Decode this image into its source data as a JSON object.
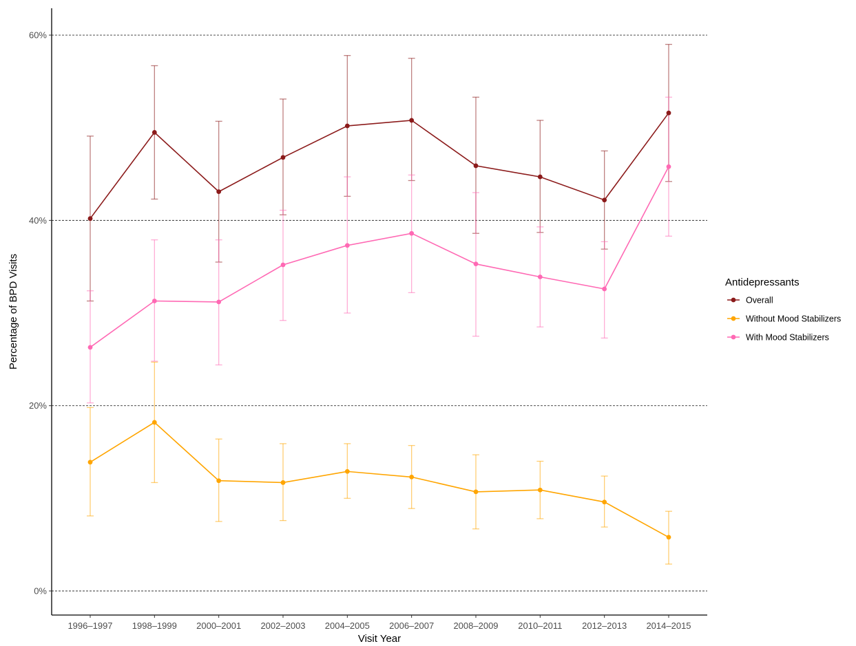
{
  "chart_data": {
    "type": "line",
    "title": "",
    "xlabel": "Visit Year",
    "ylabel": "Percentage of BPD Visits",
    "categories": [
      "1996–1997",
      "1998–1999",
      "2000–2001",
      "2002–2003",
      "2004–2005",
      "2006–2007",
      "2008–2009",
      "2010–2011",
      "2012–2013",
      "2014–2015"
    ],
    "y_ticks": [
      0,
      20,
      40,
      60
    ],
    "y_tick_labels": [
      "0%",
      "20%",
      "40%",
      "60%"
    ],
    "ylim": [
      -2.6,
      62.9
    ],
    "grid": "horizontal dashed at major y ticks",
    "legend": {
      "title": "Antidepressants",
      "position": "right"
    },
    "series": [
      {
        "name": "Overall",
        "color": "#8b1a1a",
        "values": [
          40.2,
          49.5,
          43.1,
          46.8,
          50.2,
          50.8,
          45.9,
          44.7,
          42.2,
          51.6
        ],
        "lower": [
          31.3,
          42.3,
          35.5,
          40.6,
          42.6,
          44.3,
          38.6,
          38.7,
          36.9,
          44.2
        ],
        "upper": [
          49.1,
          56.7,
          50.7,
          53.1,
          57.8,
          57.5,
          53.3,
          50.8,
          47.5,
          59.0
        ]
      },
      {
        "name": "Without Mood Stabilizers",
        "color": "#ffa500",
        "values": [
          13.9,
          18.2,
          11.9,
          11.7,
          12.9,
          12.3,
          10.7,
          10.9,
          9.6,
          5.8
        ],
        "lower": [
          8.1,
          11.7,
          7.5,
          7.6,
          10.0,
          8.9,
          6.7,
          7.8,
          6.9,
          2.9
        ],
        "upper": [
          19.8,
          24.7,
          16.4,
          15.9,
          15.9,
          15.7,
          14.7,
          14.0,
          12.4,
          8.6
        ]
      },
      {
        "name": "With Mood Stabilizers",
        "color": "#ff69b4",
        "values": [
          26.3,
          31.3,
          31.2,
          35.2,
          37.3,
          38.6,
          35.3,
          33.9,
          32.6,
          45.8
        ],
        "lower": [
          20.3,
          24.8,
          24.4,
          29.2,
          30.0,
          32.2,
          27.5,
          28.5,
          27.3,
          38.3
        ],
        "upper": [
          32.4,
          37.9,
          37.9,
          41.1,
          44.7,
          44.9,
          43.0,
          39.3,
          37.7,
          53.3
        ]
      }
    ]
  }
}
